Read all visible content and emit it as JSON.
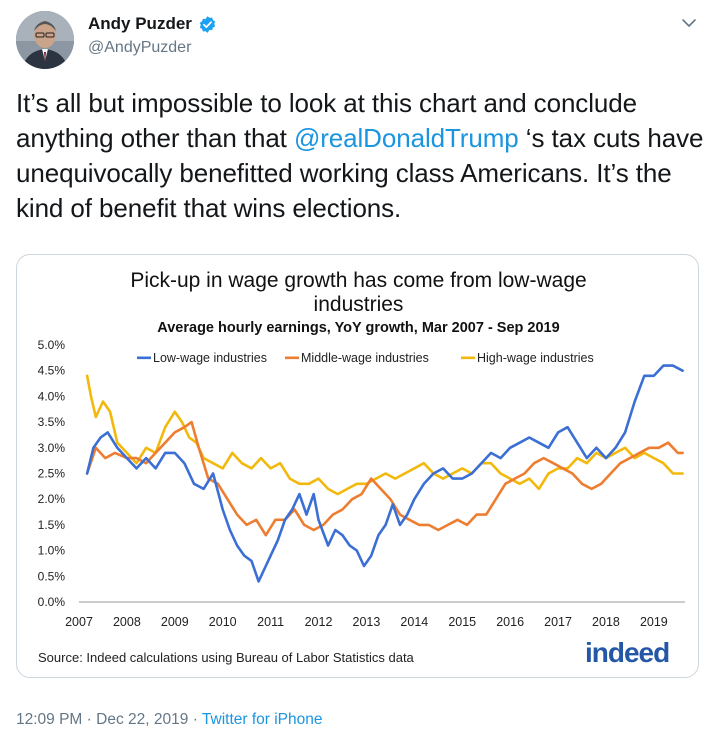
{
  "tweet": {
    "display_name": "Andy Puzder",
    "handle": "@AndyPuzder",
    "text_before": "It’s all but impossible to look at this chart and conclude anything other than that ",
    "mention": "@realDonaldTrump",
    "text_after": " ‘s tax cuts have unequivocally benefitted working class Americans. It’s the kind of benefit that wins elections.",
    "time": "12:09 PM",
    "date": "Dec 22, 2019",
    "separator": "·",
    "via": "Twitter for iPhone"
  },
  "icons": {
    "verified": "verified-badge-icon",
    "caret": "chevron-down-icon"
  },
  "colors": {
    "link": "#1b95e0",
    "low": "#3b6fd4",
    "mid": "#ed7d31",
    "high": "#f2b90c",
    "indeed": "#2557a7"
  },
  "chart_data": {
    "type": "line",
    "title_line1": "Pick-up in wage growth has come from low-wage",
    "title_line2": "industries",
    "subtitle": "Average hourly earnings, YoY growth, Mar 2007 - Sep 2019",
    "source": "Source: Indeed calculations using Bureau of Labor Statistics data",
    "logo": "indeed",
    "x_ticks": [
      "2007",
      "2008",
      "2009",
      "2010",
      "2011",
      "2012",
      "2013",
      "2014",
      "2015",
      "2016",
      "2017",
      "2018",
      "2019"
    ],
    "y_ticks": [
      "0.0%",
      "0.5%",
      "1.0%",
      "1.5%",
      "2.0%",
      "2.5%",
      "3.0%",
      "3.5%",
      "4.0%",
      "4.5%",
      "5.0%"
    ],
    "ylim": [
      0,
      5
    ],
    "xlim": [
      2007.0,
      2019.65
    ],
    "legend_position": "top",
    "grid": false,
    "series": [
      {
        "name": "Low-wage industries",
        "x": [
          2007.17,
          2007.3,
          2007.45,
          2007.6,
          2007.8,
          2008.0,
          2008.2,
          2008.4,
          2008.6,
          2008.8,
          2009.0,
          2009.2,
          2009.4,
          2009.6,
          2009.8,
          2010.0,
          2010.15,
          2010.3,
          2010.45,
          2010.6,
          2010.75,
          2010.9,
          2011.0,
          2011.15,
          2011.3,
          2011.45,
          2011.6,
          2011.75,
          2011.9,
          2012.0,
          2012.2,
          2012.35,
          2012.5,
          2012.65,
          2012.8,
          2012.95,
          2013.1,
          2013.25,
          2013.4,
          2013.55,
          2013.7,
          2013.85,
          2014.0,
          2014.2,
          2014.4,
          2014.6,
          2014.8,
          2015.0,
          2015.2,
          2015.4,
          2015.6,
          2015.8,
          2016.0,
          2016.2,
          2016.4,
          2016.6,
          2016.8,
          2017.0,
          2017.2,
          2017.4,
          2017.6,
          2017.8,
          2018.0,
          2018.2,
          2018.4,
          2018.6,
          2018.8,
          2019.0,
          2019.2,
          2019.4,
          2019.6
        ],
        "values": [
          2.5,
          3.0,
          3.2,
          3.3,
          3.0,
          2.8,
          2.6,
          2.8,
          2.6,
          2.9,
          2.9,
          2.7,
          2.3,
          2.2,
          2.5,
          1.8,
          1.4,
          1.1,
          0.9,
          0.8,
          0.4,
          0.7,
          0.9,
          1.2,
          1.6,
          1.8,
          2.1,
          1.7,
          2.1,
          1.6,
          1.1,
          1.4,
          1.3,
          1.1,
          1.0,
          0.7,
          0.9,
          1.3,
          1.5,
          1.9,
          1.5,
          1.7,
          2.0,
          2.3,
          2.5,
          2.6,
          2.4,
          2.4,
          2.5,
          2.7,
          2.9,
          2.8,
          3.0,
          3.1,
          3.2,
          3.1,
          3.0,
          3.3,
          3.4,
          3.1,
          2.8,
          3.0,
          2.8,
          3.0,
          3.3,
          3.9,
          4.4,
          4.4,
          4.6,
          4.6,
          4.5
        ]
      },
      {
        "name": "Middle-wage industries",
        "x": [
          2007.17,
          2007.35,
          2007.55,
          2007.75,
          2008.0,
          2008.2,
          2008.4,
          2008.6,
          2008.8,
          2009.0,
          2009.2,
          2009.35,
          2009.5,
          2009.7,
          2009.9,
          2010.1,
          2010.3,
          2010.5,
          2010.7,
          2010.9,
          2011.1,
          2011.3,
          2011.5,
          2011.7,
          2011.9,
          2012.1,
          2012.3,
          2012.5,
          2012.7,
          2012.9,
          2013.1,
          2013.3,
          2013.5,
          2013.7,
          2013.9,
          2014.1,
          2014.3,
          2014.5,
          2014.7,
          2014.9,
          2015.1,
          2015.3,
          2015.5,
          2015.7,
          2015.9,
          2016.1,
          2016.3,
          2016.5,
          2016.7,
          2016.9,
          2017.1,
          2017.3,
          2017.5,
          2017.7,
          2017.9,
          2018.1,
          2018.3,
          2018.5,
          2018.7,
          2018.9,
          2019.1,
          2019.3,
          2019.5,
          2019.6
        ],
        "values": [
          2.5,
          3.0,
          2.8,
          2.9,
          2.8,
          2.8,
          2.7,
          2.9,
          3.1,
          3.3,
          3.4,
          3.5,
          3.0,
          2.4,
          2.3,
          2.0,
          1.7,
          1.5,
          1.6,
          1.3,
          1.6,
          1.6,
          1.8,
          1.5,
          1.4,
          1.5,
          1.7,
          1.8,
          2.0,
          2.1,
          2.4,
          2.2,
          2.0,
          1.7,
          1.6,
          1.5,
          1.5,
          1.4,
          1.5,
          1.6,
          1.5,
          1.7,
          1.7,
          2.0,
          2.3,
          2.4,
          2.5,
          2.7,
          2.8,
          2.7,
          2.6,
          2.5,
          2.3,
          2.2,
          2.3,
          2.5,
          2.7,
          2.8,
          2.9,
          3.0,
          3.0,
          3.1,
          2.9,
          2.9
        ]
      },
      {
        "name": "High-wage industries",
        "x": [
          2007.17,
          2007.25,
          2007.35,
          2007.5,
          2007.65,
          2007.8,
          2008.0,
          2008.2,
          2008.4,
          2008.6,
          2008.8,
          2009.0,
          2009.15,
          2009.3,
          2009.45,
          2009.6,
          2009.8,
          2010.0,
          2010.2,
          2010.4,
          2010.6,
          2010.8,
          2011.0,
          2011.2,
          2011.4,
          2011.6,
          2011.8,
          2012.0,
          2012.2,
          2012.4,
          2012.6,
          2012.8,
          2013.0,
          2013.2,
          2013.4,
          2013.6,
          2013.8,
          2014.0,
          2014.2,
          2014.4,
          2014.6,
          2014.8,
          2015.0,
          2015.2,
          2015.4,
          2015.6,
          2015.8,
          2016.0,
          2016.2,
          2016.4,
          2016.6,
          2016.8,
          2017.0,
          2017.2,
          2017.4,
          2017.6,
          2017.8,
          2018.0,
          2018.2,
          2018.4,
          2018.6,
          2018.8,
          2019.0,
          2019.2,
          2019.4,
          2019.6
        ],
        "values": [
          4.4,
          4.0,
          3.6,
          3.9,
          3.7,
          3.1,
          2.9,
          2.7,
          3.0,
          2.9,
          3.4,
          3.7,
          3.5,
          3.2,
          3.1,
          2.8,
          2.7,
          2.6,
          2.9,
          2.7,
          2.6,
          2.8,
          2.6,
          2.7,
          2.4,
          2.3,
          2.3,
          2.4,
          2.2,
          2.1,
          2.2,
          2.3,
          2.3,
          2.4,
          2.5,
          2.4,
          2.5,
          2.6,
          2.7,
          2.5,
          2.4,
          2.5,
          2.6,
          2.5,
          2.7,
          2.7,
          2.5,
          2.4,
          2.3,
          2.4,
          2.2,
          2.5,
          2.6,
          2.6,
          2.8,
          2.7,
          2.9,
          2.8,
          2.9,
          3.0,
          2.8,
          2.9,
          2.8,
          2.7,
          2.5,
          2.5
        ]
      }
    ]
  }
}
